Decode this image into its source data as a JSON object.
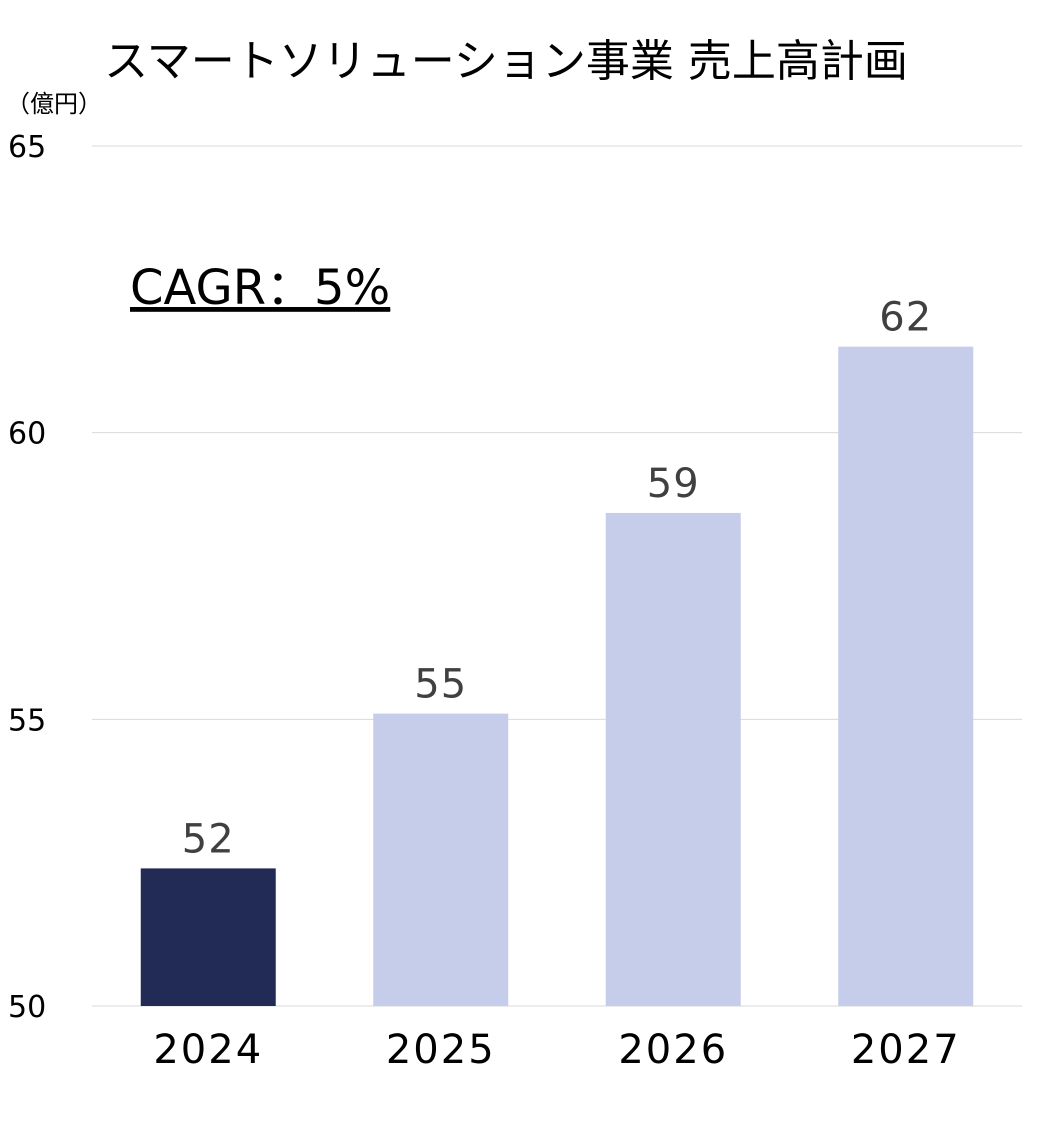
{
  "chart_data": {
    "type": "bar",
    "title": "スマートソリューション事業 売上高計画",
    "ylabel": "（億円）",
    "xlabel": "",
    "categories": [
      "2024",
      "2025",
      "2026",
      "2027"
    ],
    "values": [
      52.4,
      55.1,
      58.6,
      61.5
    ],
    "data_labels": [
      "52",
      "55",
      "59",
      "62"
    ],
    "ylim": [
      50,
      65
    ],
    "yticks": [
      "50",
      "55",
      "60",
      "65"
    ],
    "ytick_values": [
      50,
      55,
      60,
      65
    ],
    "grid": true,
    "legend": "none",
    "annotation": "CAGR：5%",
    "colors": {
      "actual": "#222b55",
      "plan": "#c5cdea",
      "grid": "#d9d9d9",
      "label": "#404040"
    }
  }
}
